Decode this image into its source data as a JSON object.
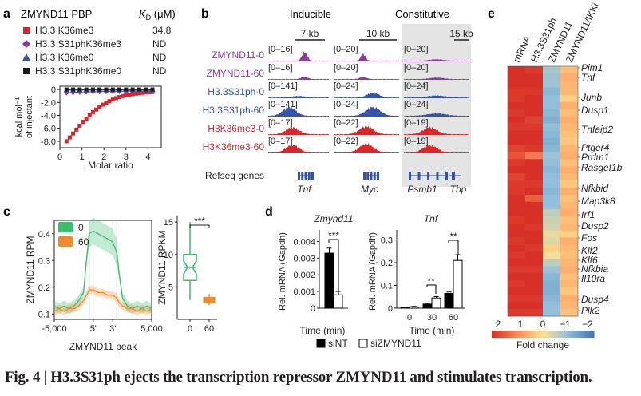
{
  "figure": {
    "caption": "Fig. 4 | H3.3S31ph ejects the transcription repressor ZMYND11 and stimulates transcription.",
    "colors": {
      "red": "#d9262b",
      "purple": "#8b3aa0",
      "blue": "#3354a8",
      "black": "#1a1a1a",
      "green": "#3dbb6f",
      "orange": "#f08a2c",
      "gray_bg": "#e4e4e4"
    }
  },
  "panels": {
    "a": {
      "label": "a",
      "title": "ZMYND11 PBP",
      "kd_header": "K_D (μM)",
      "kd_main": "K",
      "kd_sub": "D",
      "kd_unit": " (μM)",
      "legend": [
        {
          "name": "H3.3 K36me3",
          "kd": "34.8",
          "marker": "square",
          "color": "#d9262b"
        },
        {
          "name": "H3.3 S31phK36me3",
          "kd": "ND",
          "marker": "diamond",
          "color": "#8b3aa0"
        },
        {
          "name": "H3.3 K36me0",
          "kd": "ND",
          "marker": "triangle",
          "color": "#3354a8"
        },
        {
          "name": "H3.3 S31phK36me0",
          "kd": "ND",
          "marker": "square",
          "color": "#1a1a1a"
        }
      ],
      "ylabel_line1": "kcal mol⁻¹",
      "ylabel_line2": "of injectant",
      "xlabel": "Molar ratio",
      "yticks": [
        "0",
        "-2.0",
        "-4.0",
        "-6.0",
        "-8.0"
      ],
      "xticks": [
        "0",
        "1",
        "2",
        "3",
        "4"
      ]
    },
    "b": {
      "label": "b",
      "group_inducible": "Inducible",
      "group_constitutive": "Constitutive",
      "scale_bars": [
        "7 kb",
        "10 kb",
        "15 kb"
      ],
      "tracks": [
        {
          "name": "ZMYND11-0",
          "color": "#8b3aa0",
          "ranges": [
            "[0–16]",
            "[0–20]",
            "[0–20]"
          ]
        },
        {
          "name": "ZMYND11-60",
          "color": "#8b3aa0",
          "ranges": [
            "[0–16]",
            "[0–20]",
            "[0–20]"
          ]
        },
        {
          "name": "H3.3S31ph-0",
          "color": "#3354a8",
          "ranges": [
            "[0–141]",
            "[0–24]",
            "[0–24]"
          ]
        },
        {
          "name": "H3.3S31ph-60",
          "color": "#3354a8",
          "ranges": [
            "[0–141]",
            "[0–24]",
            "[0–24]"
          ]
        },
        {
          "name": "H3K36me3-0",
          "color": "#d9262b",
          "ranges": [
            "[0–17]",
            "[0–22]",
            "[0–19]"
          ]
        },
        {
          "name": "H3K36me3-60",
          "color": "#d9262b",
          "ranges": [
            "[0–17]",
            "[0–22]",
            "[0–19]"
          ]
        }
      ],
      "refseq_label": "Refseq genes",
      "genes": [
        "Tnf",
        "Myc",
        "Psmb1",
        "Tbp"
      ]
    },
    "c": {
      "label": "c",
      "legend": [
        {
          "name": "0",
          "color": "#3dbb6f"
        },
        {
          "name": "60",
          "color": "#f08a2c"
        }
      ],
      "ylabel_left": "ZMYND11 RPM",
      "xlabel_left": "ZMYND11 peak",
      "yticks_left": [
        "0.4",
        "0.3",
        "0.2",
        "0.1"
      ],
      "xticks_left": [
        "-5,000",
        "5'",
        "3'",
        "5,000"
      ],
      "ylabel_right": "ZMYND11 RPKM",
      "yticks_right": [
        "15",
        "10",
        "5"
      ],
      "xticks_right": [
        "0",
        "60"
      ],
      "significance": "***"
    },
    "d": {
      "label": "d",
      "legend": [
        {
          "name": "siNT",
          "fill": "#000000"
        },
        {
          "name": "siZMYND11",
          "fill": "#ffffff"
        }
      ],
      "xlabel": "Time (min)",
      "charts": [
        {
          "title": "Zmynd11",
          "ylabel": "Rel. mRNA (Gapdh)",
          "yticks": [
            "0.004",
            "0.003",
            "0.002",
            "0.001",
            "0"
          ],
          "xticks": [],
          "significance": [
            "***"
          ]
        },
        {
          "title": "Tnf",
          "ylabel": "Rel. mRNA (Gapdh)",
          "yticks": [
            "0.3",
            "0.2",
            "0.1",
            "0"
          ],
          "xticks": [
            "0",
            "30",
            "60"
          ],
          "significance": [
            "**",
            "**"
          ]
        }
      ]
    },
    "e": {
      "label": "e",
      "columns": [
        "mRNA",
        "H3.3S31ph",
        "ZMYND11",
        "ZMYND11/IKKi"
      ],
      "genes": [
        "Pim1",
        "Tnf",
        "Junb",
        "Dusp1",
        "Tnfaip2",
        "Ptger4",
        "Prdm1",
        "Rasgef1b",
        "Nfkbid",
        "Map3k8",
        "Irf1",
        "Dusp2",
        "Fos",
        "Klf2",
        "Klf6",
        "Nfkbia",
        "Il10ra",
        "Dusp4",
        "Plk2"
      ],
      "colorbar_ticks": [
        "2",
        "1",
        "0",
        "−1",
        "−2"
      ],
      "colorbar_label": "Fold change"
    }
  },
  "chart_data": [
    {
      "type": "scatter",
      "panel": "a",
      "title": "",
      "xlabel": "Molar ratio",
      "ylabel": "kcal mol⁻¹ of injectant",
      "xlim": [
        0,
        4.6
      ],
      "ylim": [
        -9,
        0.5
      ],
      "series": [
        {
          "name": "H3.3 K36me3",
          "x": [
            0.3,
            0.45,
            0.6,
            0.75,
            0.9,
            1.05,
            1.2,
            1.35,
            1.5,
            1.65,
            1.8,
            1.95,
            2.1,
            2.25,
            2.4,
            2.55,
            2.7,
            2.85,
            3.0,
            3.15,
            3.3,
            3.45,
            3.6,
            3.75,
            3.9,
            4.05,
            4.2
          ],
          "y": [
            -8.0,
            -7.4,
            -6.8,
            -6.2,
            -5.6,
            -5.0,
            -4.5,
            -4.0,
            -3.5,
            -3.1,
            -2.7,
            -2.35,
            -2.05,
            -1.8,
            -1.55,
            -1.35,
            -1.18,
            -1.02,
            -0.9,
            -0.8,
            -0.72,
            -0.65,
            -0.58,
            -0.52,
            -0.47,
            -0.43,
            -0.4
          ]
        },
        {
          "name": "H3.3 S31phK36me3",
          "x": [
            0.3,
            0.6,
            0.9,
            1.2,
            1.5,
            1.8,
            2.1,
            2.4,
            2.7,
            3.0,
            3.3,
            3.6,
            3.9,
            4.2
          ],
          "y": [
            -0.5,
            -0.45,
            -0.4,
            -0.38,
            -0.35,
            -0.33,
            -0.3,
            -0.3,
            -0.28,
            -0.27,
            -0.26,
            -0.25,
            -0.25,
            -0.24
          ]
        },
        {
          "name": "H3.3 K36me0",
          "x": [
            0.3,
            0.6,
            0.9,
            1.2,
            1.5,
            1.8,
            2.1,
            2.4,
            2.7,
            3.0,
            3.3,
            3.6,
            3.9,
            4.2
          ],
          "y": [
            -0.1,
            -0.1,
            -0.1,
            -0.1,
            -0.1,
            -0.1,
            -0.1,
            -0.1,
            -0.1,
            -0.1,
            -0.1,
            -0.1,
            -0.1,
            -0.1
          ]
        },
        {
          "name": "H3.3 S31phK36me0",
          "x": [
            0.3,
            0.6,
            0.9,
            1.2,
            1.5,
            1.8,
            2.1,
            2.4,
            2.7,
            3.0,
            3.3,
            3.6,
            3.9,
            4.2
          ],
          "y": [
            0.0,
            0.0,
            0.0,
            0.0,
            0.0,
            0.0,
            0.0,
            0.0,
            0.0,
            0.0,
            0.0,
            0.0,
            0.0,
            0.0
          ]
        }
      ]
    },
    {
      "type": "line",
      "panel": "c",
      "ylabel": "ZMYND11 RPM",
      "xlabel": "ZMYND11 peak",
      "ylim": [
        0.08,
        0.45
      ],
      "x_positions": [
        0,
        0.05,
        0.1,
        0.15,
        0.2,
        0.25,
        0.3,
        0.33,
        0.36,
        0.4,
        0.45,
        0.5,
        0.55,
        0.6,
        0.64,
        0.67,
        0.7,
        0.75,
        0.8,
        0.85,
        0.9,
        0.95,
        1.0
      ],
      "series": [
        {
          "name": "0",
          "values": [
            0.13,
            0.12,
            0.13,
            0.12,
            0.13,
            0.15,
            0.18,
            0.3,
            0.4,
            0.41,
            0.4,
            0.39,
            0.38,
            0.37,
            0.33,
            0.24,
            0.16,
            0.13,
            0.12,
            0.13,
            0.12,
            0.13,
            0.12
          ]
        },
        {
          "name": "60",
          "values": [
            0.11,
            0.12,
            0.11,
            0.12,
            0.12,
            0.13,
            0.15,
            0.17,
            0.19,
            0.19,
            0.18,
            0.18,
            0.17,
            0.17,
            0.16,
            0.14,
            0.13,
            0.12,
            0.12,
            0.11,
            0.12,
            0.11,
            0.12
          ]
        }
      ]
    },
    {
      "type": "box",
      "panel": "c",
      "ylabel": "ZMYND11 RPKM",
      "categories": [
        "0",
        "60"
      ],
      "ylim": [
        0,
        16
      ],
      "boxes": [
        {
          "name": "0",
          "min": 3.0,
          "q1": 6.0,
          "median": 8.0,
          "q3": 10.0,
          "max": 15.0
        },
        {
          "name": "60",
          "min": 2.2,
          "q1": 2.6,
          "median": 3.0,
          "q3": 3.4,
          "max": 3.9
        }
      ]
    },
    {
      "type": "bar",
      "panel": "d",
      "title": "Zmynd11",
      "ylabel": "Rel. mRNA (Gapdh)",
      "ylim": [
        0,
        0.0045
      ],
      "series": [
        {
          "name": "siNT",
          "values": [
            0.0033
          ],
          "errors": [
            0.0003
          ]
        },
        {
          "name": "siZMYND11",
          "values": [
            0.0008
          ],
          "errors": [
            0.0002
          ]
        }
      ]
    },
    {
      "type": "bar",
      "panel": "d",
      "title": "Tnf",
      "ylabel": "Rel. mRNA (Gapdh)",
      "categories": [
        "0",
        "30",
        "60"
      ],
      "ylim": [
        0,
        0.33
      ],
      "series": [
        {
          "name": "siNT",
          "values": [
            0.002,
            0.018,
            0.065
          ],
          "errors": [
            0.001,
            0.004,
            0.006
          ]
        },
        {
          "name": "siZMYND11",
          "values": [
            0.006,
            0.045,
            0.21
          ],
          "errors": [
            0.002,
            0.006,
            0.025
          ]
        }
      ]
    },
    {
      "type": "heatmap",
      "panel": "e",
      "columns": [
        "mRNA",
        "H3.3S31ph",
        "ZMYND11",
        "ZMYND11/IKKi"
      ],
      "colorbar_range": [
        -2,
        2
      ],
      "values": [
        [
          2.0,
          1.9,
          -0.8,
          0.4
        ],
        [
          2.0,
          2.0,
          -0.9,
          0.6
        ],
        [
          2.0,
          2.0,
          -0.9,
          0.5
        ],
        [
          1.9,
          1.9,
          -1.1,
          0.5
        ],
        [
          1.9,
          2.0,
          -1.0,
          0.2
        ],
        [
          2.0,
          2.0,
          -1.0,
          0.6
        ],
        [
          1.9,
          2.0,
          -1.1,
          0.4
        ],
        [
          2.0,
          1.8,
          -1.2,
          0.6
        ],
        [
          1.9,
          1.9,
          -1.0,
          0.5
        ],
        [
          2.0,
          2.0,
          -1.1,
          0.4
        ],
        [
          2.0,
          2.0,
          -1.2,
          0.3
        ],
        [
          1.8,
          1.9,
          -1.1,
          0.5
        ],
        [
          1.6,
          1.2,
          -0.9,
          0.6
        ],
        [
          1.9,
          2.0,
          -1.0,
          0.4
        ],
        [
          2.0,
          2.0,
          -1.1,
          0.6
        ],
        [
          1.8,
          2.0,
          -1.0,
          0.5
        ],
        [
          1.9,
          1.9,
          -1.0,
          0.3
        ],
        [
          1.9,
          2.0,
          -1.1,
          0.6
        ],
        [
          2.0,
          1.5,
          -1.0,
          0.4
        ],
        [
          2.0,
          2.0,
          -1.0,
          0.5
        ],
        [
          2.0,
          2.0,
          -0.6,
          0.6
        ],
        [
          1.9,
          2.0,
          -0.5,
          0.4
        ],
        [
          2.0,
          1.9,
          -0.4,
          0.5
        ],
        [
          2.0,
          2.0,
          -0.2,
          0.2
        ],
        [
          1.9,
          2.0,
          -0.3,
          0.6
        ],
        [
          2.0,
          1.9,
          0.2,
          0.5
        ],
        [
          1.9,
          2.0,
          -0.1,
          0.4
        ],
        [
          2.0,
          2.0,
          -0.6,
          0.5
        ],
        [
          1.9,
          1.9,
          -0.9,
          0.6
        ],
        [
          2.0,
          2.0,
          -1.1,
          0.4
        ],
        [
          1.9,
          2.0,
          -1.2,
          0.5
        ],
        [
          2.0,
          2.0,
          -1.2,
          0.3
        ],
        [
          1.9,
          1.9,
          -1.1,
          0.6
        ],
        [
          2.0,
          2.0,
          -1.0,
          0.5
        ],
        [
          1.9,
          1.9,
          -1.0,
          0.4
        ]
      ]
    }
  ]
}
